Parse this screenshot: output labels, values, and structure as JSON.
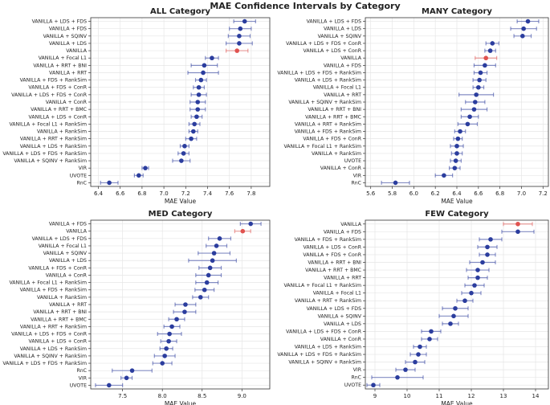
{
  "title": "MAE Confidence Intervals by Category",
  "chart_data": [
    {
      "type": "errorbar",
      "title": "ALL Category",
      "xlabel": "MAE Value",
      "grid": true,
      "xlim": [
        6.33,
        7.97
      ],
      "xticks": [
        6.4,
        6.6,
        6.8,
        {
          "value": 7,
          "label": "7.0"
        },
        7.2,
        7.4,
        7.6,
        7.8
      ],
      "categories": [
        "VANILLA + LDS + FDS",
        "VANILLA + FDS",
        "VANILLA + SQINV",
        "VANILLA + LDS",
        "VANILLA",
        "VANILLA + Focal L1",
        "VANILLA + RRT + BNI",
        "VANILLA + RRT",
        "VANILLA + FDS + RankSim",
        "VANILLA + FDS + ConR",
        "VANILLA + LDS + FDS + ConR",
        "VANILLA + ConR",
        "VANILLA + RRT + BMC",
        "VANILLA + LDS + ConR",
        "VANILLA + Focal L1 + RankSim",
        "VANILLA + RankSim",
        "VANILLA + RRT + RankSim",
        "VANILLA + LDS + RankSim",
        "VANILLA + LDS + FDS + RankSim",
        "VANILLA + SQINV + RankSim",
        "VIR",
        "UVOTE",
        "RnC"
      ],
      "values": [
        7.74,
        7.7,
        7.69,
        7.69,
        7.67,
        7.44,
        7.37,
        7.36,
        7.34,
        7.32,
        7.32,
        7.31,
        7.31,
        7.3,
        7.28,
        7.27,
        7.25,
        7.19,
        7.18,
        7.16,
        6.83,
        6.77,
        6.5
      ],
      "errors": [
        0.1,
        0.1,
        0.1,
        0.12,
        0.1,
        0.06,
        0.12,
        0.14,
        0.05,
        0.05,
        0.07,
        0.07,
        0.07,
        0.05,
        0.05,
        0.04,
        0.05,
        0.04,
        0.05,
        0.08,
        0.03,
        0.04,
        0.08
      ],
      "colors": [
        "#2b3d9e",
        "#2b3d9e",
        "#2b3d9e",
        "#2b3d9e",
        "#e0524f",
        "#2b3d9e",
        "#2b3d9e",
        "#2b3d9e",
        "#2b3d9e",
        "#2b3d9e",
        "#2b3d9e",
        "#2b3d9e",
        "#2b3d9e",
        "#2b3d9e",
        "#2b3d9e",
        "#2b3d9e",
        "#2b3d9e",
        "#2b3d9e",
        "#2b3d9e",
        "#2b3d9e",
        "#2b3d9e",
        "#2b3d9e",
        "#2b3d9e"
      ]
    },
    {
      "type": "errorbar",
      "title": "MANY Category",
      "xlabel": "MAE Value",
      "grid": true,
      "xlim": [
        5.55,
        7.25
      ],
      "xticks": [
        5.6,
        5.8,
        {
          "value": 6,
          "label": "6.0"
        },
        6.2,
        6.4,
        6.6,
        6.8,
        {
          "value": 7,
          "label": "7.0"
        },
        7.2
      ],
      "categories": [
        "VANILLA + LDS + FDS",
        "VANILLA + LDS",
        "VANILLA + SQINV",
        "VANILLA + LDS + FDS + ConR",
        "VANILLA + LDS + ConR",
        "VANILLA",
        "VANILLA + FDS",
        "VANILLA + LDS + FDS + RankSim",
        "VANILLA + LDS + RankSim",
        "VANILLA + Focal L1",
        "VANILLA + RRT",
        "VANILLA + SQINV + RankSim",
        "VANILLA + RRT + BNI",
        "VANILLA + RRT + BMC",
        "VANILLA + RRT + RankSim",
        "VANILLA + FDS + RankSim",
        "VANILLA + FDS + ConR",
        "VANILLA + Focal L1 + RankSim",
        "VANILLA + RankSim",
        "UVOTE",
        "VANILLA + ConR",
        "VIR",
        "RnC"
      ],
      "values": [
        7.06,
        7.02,
        7.01,
        6.73,
        6.71,
        6.67,
        6.66,
        6.62,
        6.61,
        6.6,
        6.58,
        6.57,
        6.56,
        6.52,
        6.5,
        6.43,
        6.41,
        6.4,
        6.4,
        6.39,
        6.38,
        6.28,
        5.83
      ],
      "errors": [
        0.1,
        0.12,
        0.08,
        0.06,
        0.05,
        0.1,
        0.1,
        0.06,
        0.06,
        0.05,
        0.16,
        0.09,
        0.12,
        0.08,
        0.09,
        0.05,
        0.04,
        0.06,
        0.05,
        0.05,
        0.05,
        0.08,
        0.13
      ],
      "colors": [
        "#2b3d9e",
        "#2b3d9e",
        "#2b3d9e",
        "#2b3d9e",
        "#2b3d9e",
        "#e0524f",
        "#2b3d9e",
        "#2b3d9e",
        "#2b3d9e",
        "#2b3d9e",
        "#2b3d9e",
        "#2b3d9e",
        "#2b3d9e",
        "#2b3d9e",
        "#2b3d9e",
        "#2b3d9e",
        "#2b3d9e",
        "#2b3d9e",
        "#2b3d9e",
        "#2b3d9e",
        "#2b3d9e",
        "#2b3d9e",
        "#2b3d9e"
      ]
    },
    {
      "type": "errorbar",
      "title": "MED Category",
      "xlabel": "MAE Value",
      "grid": true,
      "xlim": [
        7.1,
        9.35
      ],
      "xticks": [
        7.5,
        {
          "value": 8,
          "label": "8.0"
        },
        8.5,
        {
          "value": 9,
          "label": "9.0"
        }
      ],
      "categories": [
        "VANILLA + FDS",
        "VANILLA",
        "VANILLA + LDS + FDS",
        "VANILLA + Focal L1",
        "VANILLA + SQINV",
        "VANILLA + LDS",
        "VANILLA + FDS + ConR",
        "VANILLA + ConR",
        "VANILLA + Focal L1 + RankSim",
        "VANILLA + FDS + RankSim",
        "VANILLA + RankSim",
        "VANILLA + RRT",
        "VANILLA + RRT + BNI",
        "VANILLA + RRT + BMC",
        "VANILLA + RRT + RankSim",
        "VANILLA + LDS + FDS + ConR",
        "VANILLA + LDS + ConR",
        "VANILLA + LDS + RankSim",
        "VANILLA + SQINV + RankSim",
        "VANILLA + LDS + FDS + RankSim",
        "RnC",
        "VIR",
        "UVOTE"
      ],
      "values": [
        9.11,
        9.01,
        8.72,
        8.68,
        8.65,
        8.63,
        8.6,
        8.58,
        8.56,
        8.53,
        8.48,
        8.29,
        8.28,
        8.18,
        8.12,
        8.09,
        8.08,
        8.05,
        8.03,
        8,
        7.62,
        7.55,
        7.33
      ],
      "errors": [
        0.13,
        0.1,
        0.14,
        0.13,
        0.2,
        0.3,
        0.14,
        0.16,
        0.14,
        0.12,
        0.1,
        0.13,
        0.14,
        0.1,
        0.1,
        0.15,
        0.1,
        0.08,
        0.13,
        0.12,
        0.25,
        0.07,
        0.17
      ],
      "colors": [
        "#2b3d9e",
        "#e0524f",
        "#2b3d9e",
        "#2b3d9e",
        "#2b3d9e",
        "#2b3d9e",
        "#2b3d9e",
        "#2b3d9e",
        "#2b3d9e",
        "#2b3d9e",
        "#2b3d9e",
        "#2b3d9e",
        "#2b3d9e",
        "#2b3d9e",
        "#2b3d9e",
        "#2b3d9e",
        "#2b3d9e",
        "#2b3d9e",
        "#2b3d9e",
        "#2b3d9e",
        "#2b3d9e",
        "#2b3d9e",
        "#2b3d9e"
      ]
    },
    {
      "type": "errorbar",
      "title": "FEW Category",
      "xlabel": "MAE Value",
      "grid": true,
      "xlim": [
        8.7,
        14.4
      ],
      "xticks": [
        9,
        10,
        11,
        12,
        13,
        14
      ],
      "categories": [
        "VANILLA",
        "VANILLA + FDS",
        "VANILLA + FDS + RankSim",
        "VANILLA + LDS + ConR",
        "VANILLA + FDS + ConR",
        "VANILLA + RRT + BNI",
        "VANILLA + RRT + BMC",
        "VANILLA + RRT",
        "VANILLA + Focal L1 + RankSim",
        "VANILLA + Focal L1",
        "VANILLA + RRT + RankSim",
        "VANILLA + LDS + FDS",
        "VANILLA + SQINV",
        "VANILLA + LDS",
        "VANILLA + LDS + FDS + ConR",
        "VANILLA + ConR",
        "VANILLA + LDS + RankSim",
        "VANILLA + LDS + FDS + RankSim",
        "VANILLA + SQINV + RankSim",
        "VIR",
        "RnC",
        "UVOTE"
      ],
      "values": [
        13.45,
        13.45,
        12.6,
        12.5,
        12.5,
        12.35,
        12.2,
        12.2,
        12.1,
        12,
        11.8,
        11.5,
        11.45,
        11.35,
        10.75,
        10.7,
        10.4,
        10.35,
        10.25,
        9.95,
        9.7,
        8.95
      ],
      "errors": [
        0.45,
        0.5,
        0.35,
        0.3,
        0.25,
        0.4,
        0.35,
        0.3,
        0.3,
        0.3,
        0.25,
        0.4,
        0.45,
        0.25,
        0.3,
        0.25,
        0.2,
        0.25,
        0.3,
        0.3,
        0.8,
        0.2
      ],
      "colors": [
        "#e0524f",
        "#2b3d9e",
        "#2b3d9e",
        "#2b3d9e",
        "#2b3d9e",
        "#2b3d9e",
        "#2b3d9e",
        "#2b3d9e",
        "#2b3d9e",
        "#2b3d9e",
        "#2b3d9e",
        "#2b3d9e",
        "#2b3d9e",
        "#2b3d9e",
        "#2b3d9e",
        "#2b3d9e",
        "#2b3d9e",
        "#2b3d9e",
        "#2b3d9e",
        "#2b3d9e",
        "#2b3d9e",
        "#2b3d9e"
      ]
    }
  ]
}
